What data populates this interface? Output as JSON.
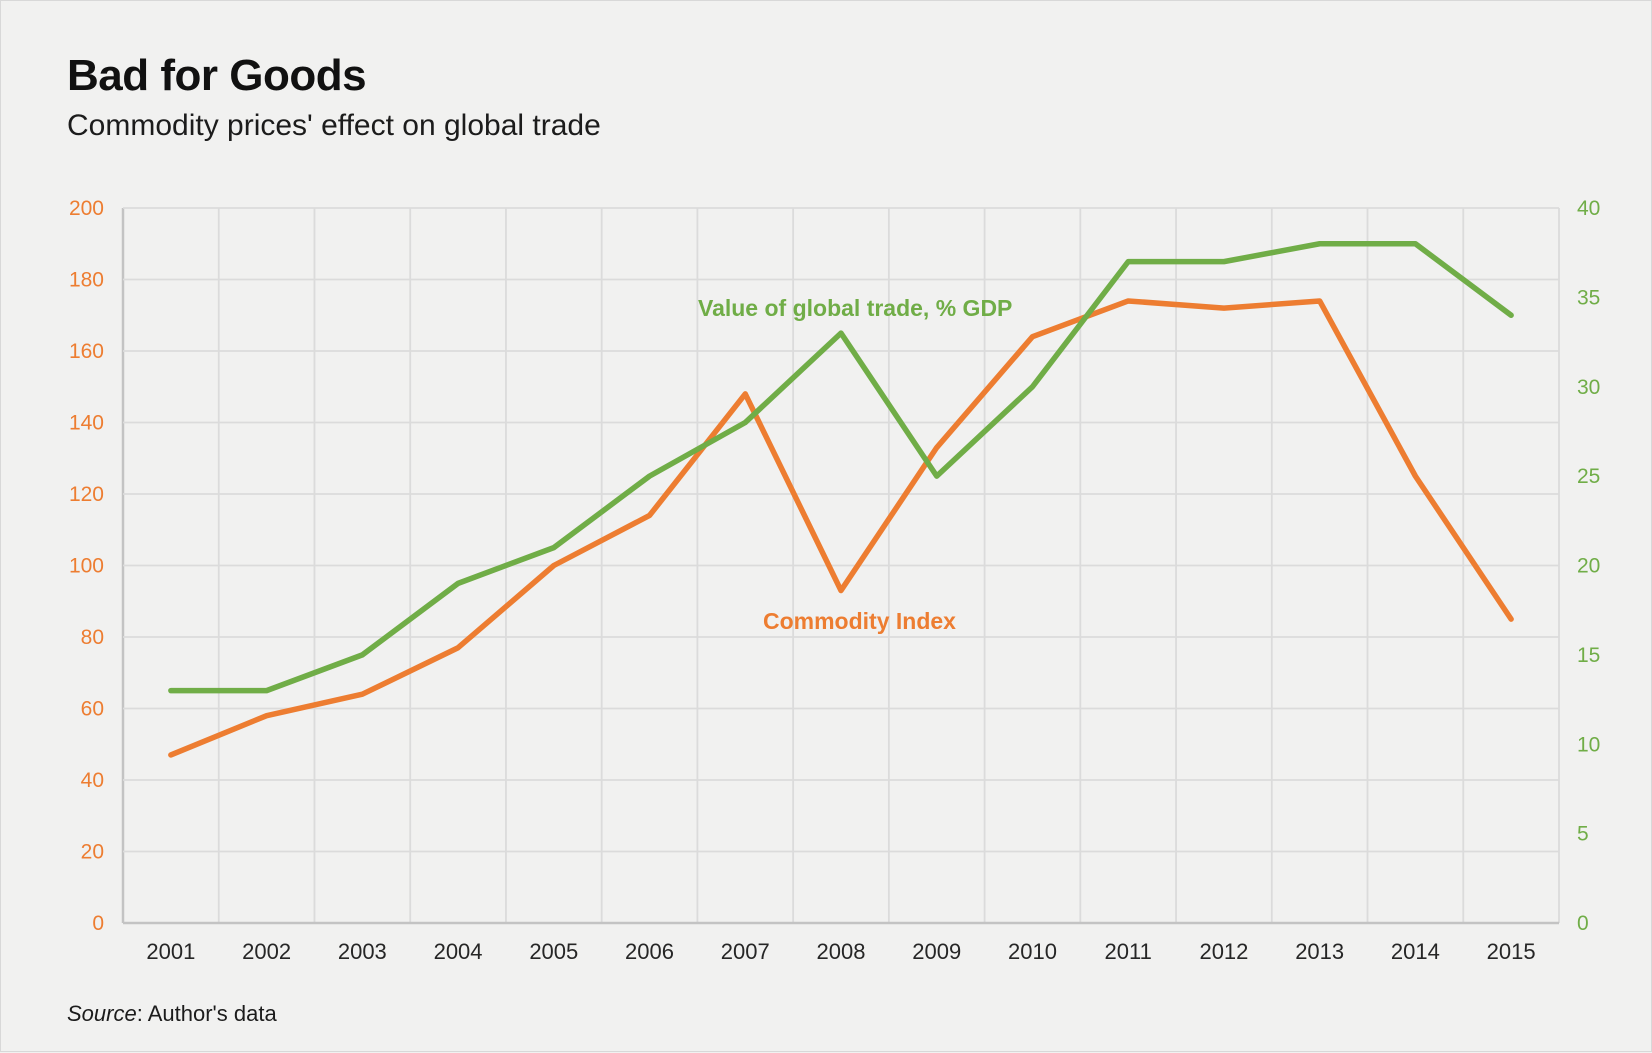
{
  "header": {
    "title": "Bad for Goods",
    "subtitle": "Commodity prices' effect on global trade"
  },
  "source": {
    "label": "Source",
    "rest": ": Author's data"
  },
  "chart_data": {
    "type": "line",
    "title": "Bad for Goods",
    "subtitle": "Commodity prices' effect on global trade",
    "categories": [
      2001,
      2002,
      2003,
      2004,
      2005,
      2006,
      2007,
      2008,
      2009,
      2010,
      2011,
      2012,
      2013,
      2014,
      2015
    ],
    "series": [
      {
        "name": "Commodity Index",
        "axis": "left",
        "color": "#ED7D31",
        "values": [
          47,
          58,
          64,
          77,
          100,
          114,
          148,
          93,
          133,
          164,
          174,
          172,
          174,
          125,
          85
        ]
      },
      {
        "name": "Value of global trade, % GDP",
        "axis": "right",
        "color": "#70AD47",
        "values": [
          13,
          13,
          15,
          19,
          21,
          25,
          28,
          33,
          25,
          30,
          37,
          37,
          38,
          38,
          34
        ]
      }
    ],
    "left_axis": {
      "min": 0,
      "max": 200,
      "step": 20,
      "label_color": "#ED7D31"
    },
    "right_axis": {
      "min": 0,
      "max": 40,
      "step": 5,
      "label_color": "#70AD47"
    },
    "x_axis": {
      "label_color": "#262626"
    },
    "grid": {
      "show": true,
      "color": "#dbdbdb",
      "axis_color": "#c3c3c3"
    },
    "legend_position": "inline-labels",
    "annotations": [
      {
        "text": "Value of global trade, % GDP",
        "color": "#70AD47",
        "x": 697,
        "y": 315,
        "anchor": "start"
      },
      {
        "text": "Commodity Index",
        "color": "#ED7D31",
        "x": 762,
        "y": 628,
        "anchor": "start"
      }
    ]
  }
}
